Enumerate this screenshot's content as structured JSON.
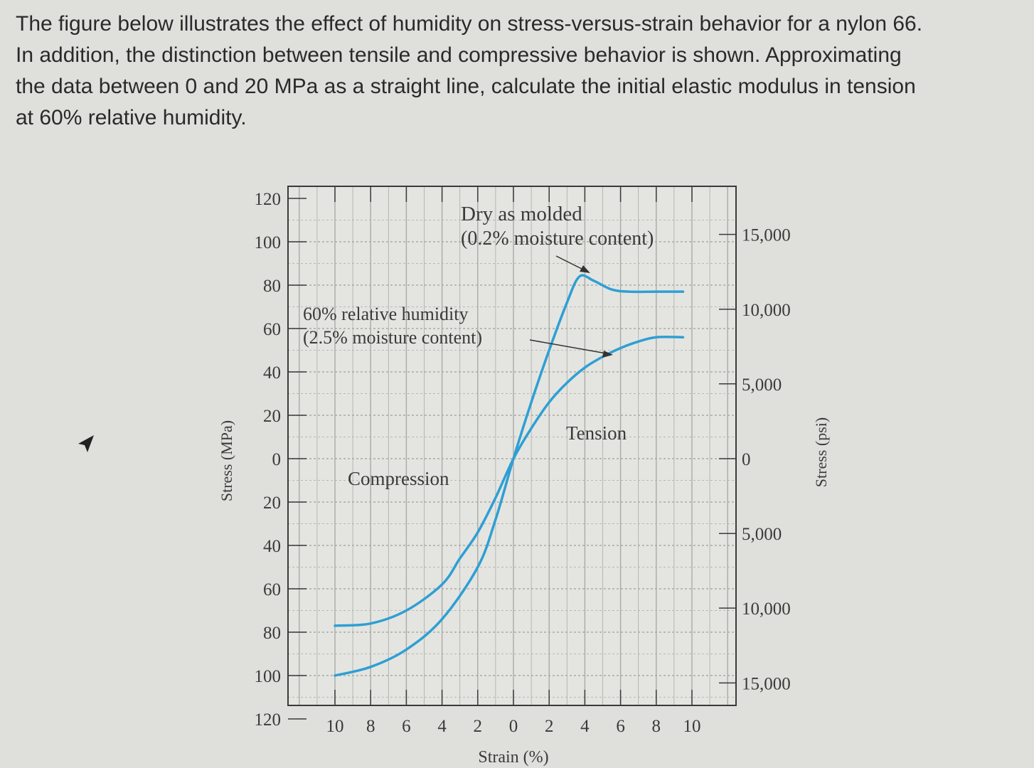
{
  "question": {
    "line1": "The figure below illustrates the effect of humidity on stress-versus-strain behavior for a nylon 66.",
    "line2": "In addition, the distinction between tensile and compressive behavior is shown. Approximating",
    "line3": "the data between 0 and 20 MPa as a straight line, calculate the initial elastic modulus in tension",
    "line4": "at 60% relative humidity."
  },
  "cursor_icon": "arrow-pointer-icon",
  "colors": {
    "curve": "#2e9fd4",
    "grid": "#a9aaa6",
    "frame": "#3a3a3a"
  },
  "chart_data": {
    "type": "line",
    "xlabel": "Strain (%)",
    "ylabel_left": "Stress (MPa)",
    "ylabel_right": "Stress (psi)",
    "x_tick_labels": [
      "10",
      "8",
      "6",
      "4",
      "2",
      "0",
      "2",
      "4",
      "6",
      "8",
      "10"
    ],
    "x_ticks": [
      -10,
      -8,
      -6,
      -4,
      -2,
      0,
      2,
      4,
      6,
      8,
      10
    ],
    "y_tick_labels_left": [
      "120",
      "100",
      "80",
      "60",
      "40",
      "20",
      "0",
      "20",
      "40",
      "60",
      "80",
      "100",
      "120"
    ],
    "y_ticks_left": [
      120,
      100,
      80,
      60,
      40,
      20,
      0,
      -20,
      -40,
      -60,
      -80,
      -100,
      -120
    ],
    "y_tick_labels_right": [
      "15,000",
      "10,000",
      "5,000",
      "0",
      "5,000",
      "10,000",
      "15,000"
    ],
    "y_ticks_right_mpa": [
      103.4,
      68.9,
      34.5,
      0,
      -34.5,
      -68.9,
      -103.4
    ],
    "xlim": [
      -12,
      12
    ],
    "ylim": [
      -120,
      120
    ],
    "annotations": {
      "dry_line1": "Dry as molded",
      "dry_line2": "(0.2% moisture content)",
      "humid_line1": "60% relative humidity",
      "humid_line2": "(2.5% moisture content)",
      "tension": "Tension",
      "compression": "Compression"
    },
    "series": [
      {
        "key": "dry",
        "points": [
          [
            -10,
            -100
          ],
          [
            -8,
            -96
          ],
          [
            -6,
            -88
          ],
          [
            -4,
            -74
          ],
          [
            -2,
            -50
          ],
          [
            -1,
            -28
          ],
          [
            0,
            0
          ],
          [
            1,
            26
          ],
          [
            2,
            50
          ],
          [
            3,
            72
          ],
          [
            3.7,
            84
          ],
          [
            4.5,
            82
          ],
          [
            5.5,
            78
          ],
          [
            6.5,
            77
          ],
          [
            8,
            77
          ],
          [
            9.5,
            77
          ]
        ]
      },
      {
        "key": "humid",
        "points": [
          [
            -10,
            -77
          ],
          [
            -8,
            -76
          ],
          [
            -6,
            -70
          ],
          [
            -4,
            -58
          ],
          [
            -3,
            -46
          ],
          [
            -2,
            -34
          ],
          [
            -1,
            -18
          ],
          [
            0,
            0
          ],
          [
            1,
            14
          ],
          [
            2,
            26
          ],
          [
            3,
            35
          ],
          [
            4,
            42
          ],
          [
            5,
            47
          ],
          [
            6,
            51
          ],
          [
            7,
            54
          ],
          [
            8,
            56
          ],
          [
            9.5,
            56
          ]
        ]
      }
    ]
  }
}
